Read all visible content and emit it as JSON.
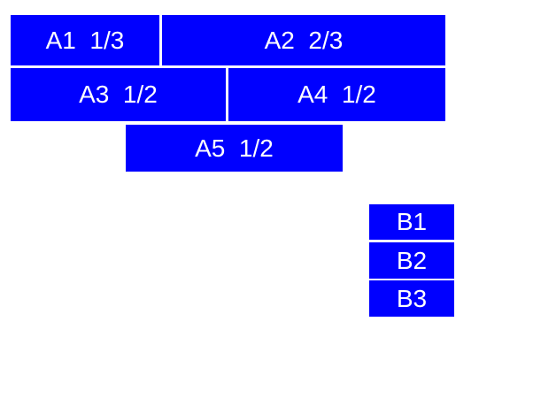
{
  "colors": {
    "box_fill": "#0000ff",
    "box_text": "#ffffff",
    "page_background": "#ffffff"
  },
  "boxes": {
    "a1": {
      "label": "A1  1/3"
    },
    "a2": {
      "label": "A2  2/3"
    },
    "a3": {
      "label": "A3  1/2"
    },
    "a4": {
      "label": "A4  1/2"
    },
    "a5": {
      "label": "A5  1/2"
    },
    "b1": {
      "label": "B1"
    },
    "b2": {
      "label": "B2"
    },
    "b3": {
      "label": "B3"
    }
  }
}
